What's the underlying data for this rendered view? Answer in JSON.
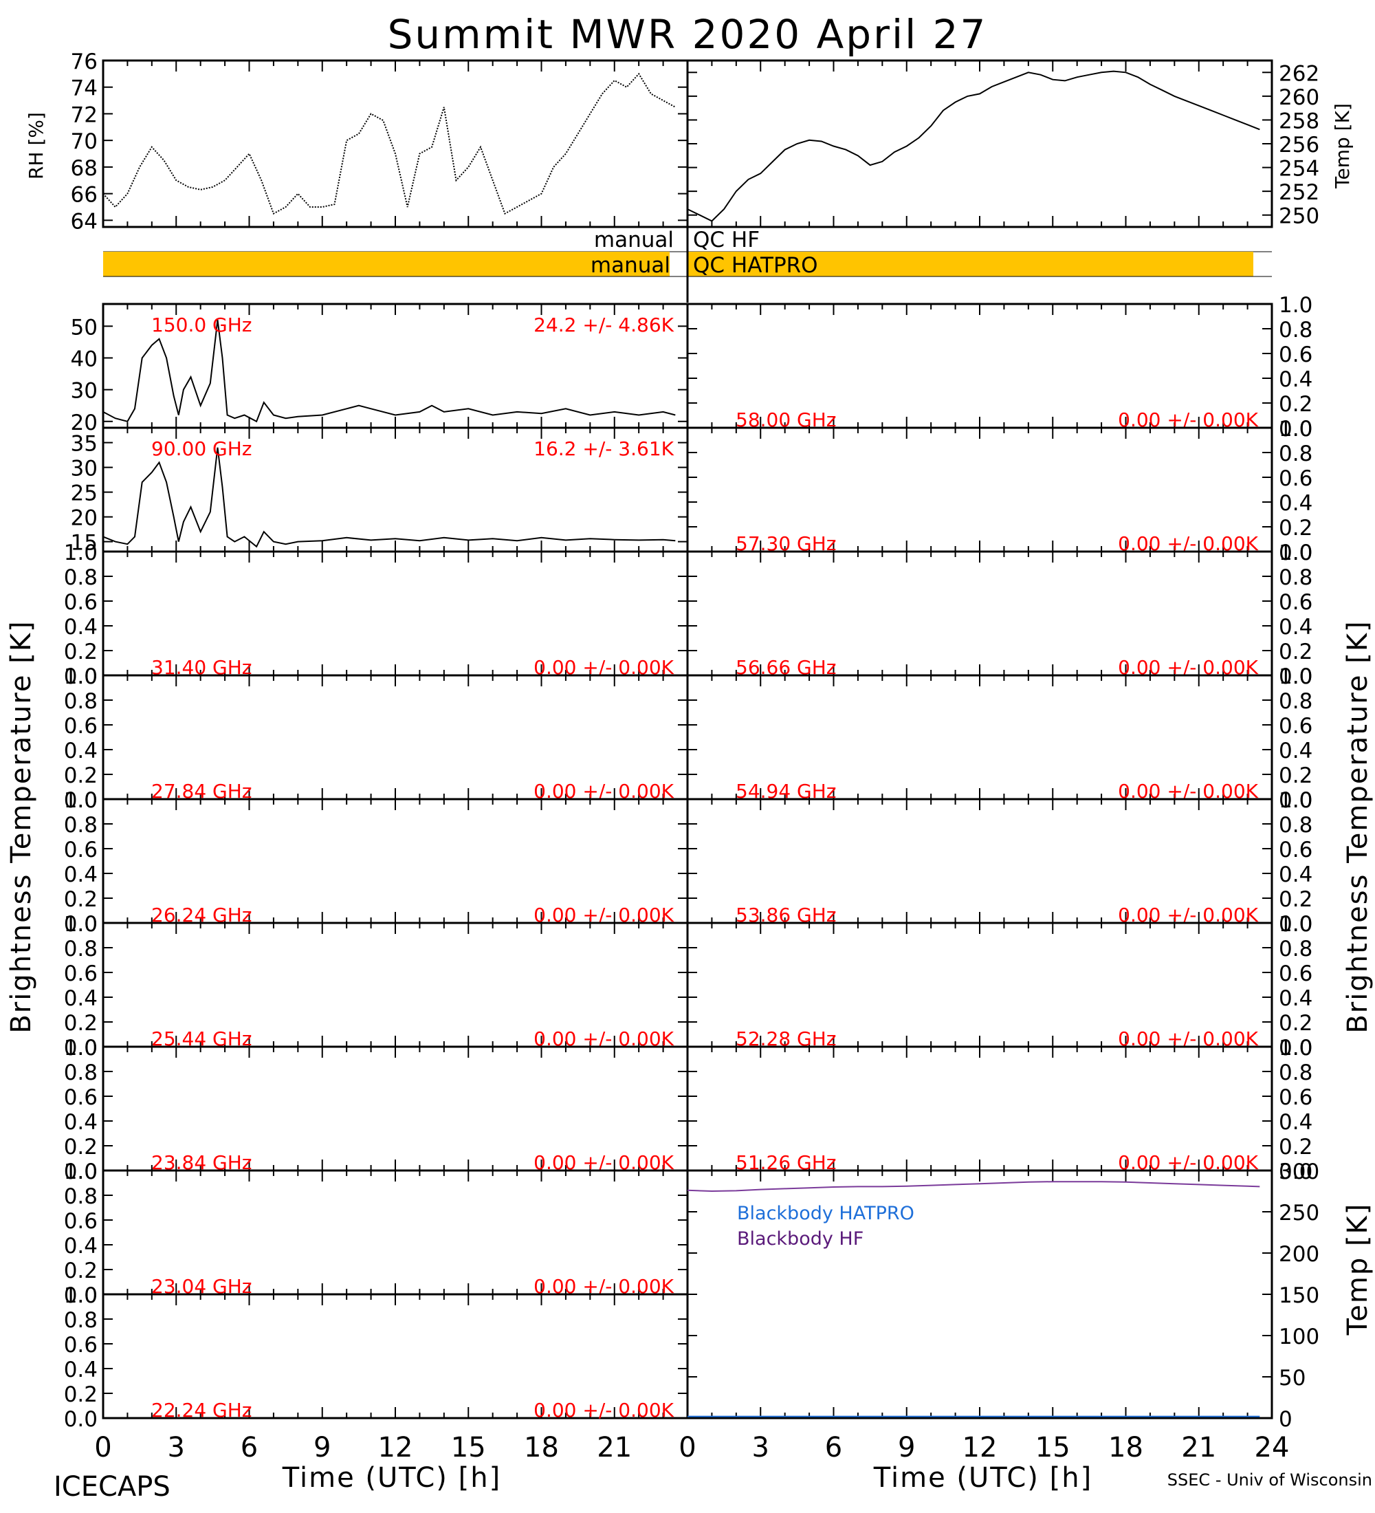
{
  "title": "Summit MWR 2020 April 27",
  "footer": {
    "left": "ICECAPS",
    "right": "SSEC - Univ of Wisconsin"
  },
  "colors": {
    "axis": "#000000",
    "label_red": "#ff0000",
    "qc_bar": "#ffc400",
    "bb_hatpro": "#1e6fd9",
    "bb_hf": "#5a1a7a",
    "bb_line": "#7a3a9a"
  },
  "axes": {
    "xlabel": "Time (UTC) [h]",
    "xticks": [
      "0",
      "3",
      "6",
      "9",
      "12",
      "15",
      "18",
      "21"
    ],
    "xticks_right": [
      "0",
      "3",
      "6",
      "9",
      "12",
      "15",
      "18",
      "21",
      "24"
    ],
    "ylabel_rh": "RH [%]",
    "ylabel_temp": "Temp [K]",
    "ylabel_tb": "Brightness Temperature [K]",
    "ylabel_bb": "Temp [K]"
  },
  "qc": {
    "hf_left": "manual",
    "hf_right": "QC HF",
    "hatpro_left": "manual",
    "hatpro_right": "QC HATPRO"
  },
  "legend": {
    "bb_hatpro": "Blackbody HATPRO",
    "bb_hf": "Blackbody HF"
  },
  "chart_data": [
    {
      "id": "rh",
      "type": "line",
      "ylabel": "RH [%]",
      "xlim": [
        0,
        24
      ],
      "ylim": [
        63.5,
        76
      ],
      "yticks": [
        "64",
        "66",
        "68",
        "70",
        "72",
        "74",
        "76"
      ],
      "x": [
        0,
        0.5,
        1,
        1.5,
        2,
        2.5,
        3,
        3.5,
        4,
        4.5,
        5,
        5.5,
        6,
        6.5,
        7,
        7.5,
        8,
        8.5,
        9,
        9.5,
        10,
        10.5,
        11,
        11.5,
        12,
        12.5,
        13,
        13.5,
        14,
        14.5,
        15,
        15.5,
        16,
        16.5,
        17,
        17.5,
        18,
        18.5,
        19,
        19.5,
        20,
        20.5,
        21,
        21.5,
        22,
        22.5,
        23,
        23.5
      ],
      "y": [
        66,
        65,
        66,
        68,
        69.5,
        68.5,
        67,
        66.5,
        66.3,
        66.5,
        67,
        68,
        69,
        67,
        64.5,
        65,
        66,
        65,
        65,
        65.2,
        70,
        70.5,
        72,
        71.5,
        69,
        65,
        69,
        69.5,
        72.5,
        67,
        68,
        69.5,
        67,
        64.5,
        65,
        65.5,
        66,
        68,
        69,
        70.5,
        72,
        73.5,
        74.5,
        74,
        75,
        73.5,
        73,
        72.5
      ]
    },
    {
      "id": "temp",
      "type": "line",
      "ylabel": "Temp [K]",
      "xlim": [
        0,
        24
      ],
      "ylim": [
        249,
        263
      ],
      "yticks": [
        "250",
        "252",
        "254",
        "256",
        "258",
        "260",
        "262"
      ],
      "x": [
        0,
        0.5,
        1,
        1.5,
        2,
        2.5,
        3,
        3.5,
        4,
        4.5,
        5,
        5.5,
        6,
        6.5,
        7,
        7.5,
        8,
        8.5,
        9,
        9.5,
        10,
        10.5,
        11,
        11.5,
        12,
        12.5,
        13,
        13.5,
        14,
        14.5,
        15,
        15.5,
        16,
        16.5,
        17,
        17.5,
        18,
        18.5,
        19,
        19.5,
        20,
        20.5,
        21,
        21.5,
        22,
        22.5,
        23,
        23.5
      ],
      "y": [
        250.5,
        250,
        249.5,
        250.5,
        252,
        253,
        253.5,
        254.5,
        255.5,
        256,
        256.3,
        256.2,
        255.8,
        255.5,
        255,
        254.2,
        254.5,
        255.3,
        255.8,
        256.5,
        257.5,
        258.8,
        259.5,
        260,
        260.2,
        260.8,
        261.2,
        261.6,
        262,
        261.8,
        261.4,
        261.3,
        261.6,
        261.8,
        262,
        262.1,
        262,
        261.6,
        261,
        260.5,
        260,
        259.6,
        259.2,
        258.8,
        258.4,
        258,
        257.6,
        257.2
      ]
    },
    {
      "id": "tb150",
      "type": "line",
      "freq": "150.0 GHz",
      "stats": "24.2 +/- 4.86K",
      "xlim": [
        0,
        24
      ],
      "ylim": [
        18,
        57
      ],
      "yticks": [
        "20",
        "30",
        "40",
        "50"
      ],
      "x": [
        0,
        0.5,
        1,
        1.3,
        1.6,
        2,
        2.3,
        2.6,
        2.9,
        3.1,
        3.3,
        3.6,
        4,
        4.4,
        4.7,
        4.9,
        5.1,
        5.4,
        5.8,
        6.3,
        6.6,
        7,
        7.5,
        8,
        9,
        10,
        10.5,
        11,
        12,
        13,
        13.5,
        14,
        15,
        16,
        17,
        18,
        19,
        20,
        21,
        22,
        23,
        23.5
      ],
      "y": [
        23,
        21,
        20,
        24,
        40,
        44,
        46,
        40,
        28,
        22,
        30,
        34,
        25,
        32,
        52,
        40,
        22,
        21,
        22,
        20,
        26,
        22,
        21,
        21.5,
        22,
        24,
        25,
        24,
        22,
        23,
        25,
        23,
        24,
        22,
        23,
        22.5,
        24,
        22,
        23,
        22,
        23,
        22
      ]
    },
    {
      "id": "tb90",
      "type": "line",
      "freq": "90.00 GHz",
      "stats": "16.2 +/- 3.61K",
      "xlim": [
        0,
        24
      ],
      "ylim": [
        13,
        38
      ],
      "yticks": [
        "15",
        "20",
        "25",
        "30",
        "35"
      ],
      "x": [
        0,
        0.5,
        1,
        1.3,
        1.6,
        2,
        2.3,
        2.6,
        2.9,
        3.1,
        3.3,
        3.6,
        4,
        4.4,
        4.7,
        4.9,
        5.1,
        5.4,
        5.8,
        6.3,
        6.6,
        7,
        7.5,
        8,
        9,
        10,
        11,
        12,
        13,
        14,
        15,
        16,
        17,
        18,
        19,
        20,
        21,
        22,
        23,
        23.5
      ],
      "y": [
        16,
        15,
        14.5,
        16,
        27,
        29,
        31,
        27,
        20,
        15,
        19,
        22,
        17,
        21,
        34,
        26,
        16,
        15,
        16,
        14,
        17,
        15,
        14.5,
        15,
        15.2,
        15.8,
        15.3,
        15.6,
        15.2,
        15.8,
        15.3,
        15.6,
        15.2,
        15.8,
        15.3,
        15.6,
        15.4,
        15.3,
        15.4,
        15.2
      ]
    },
    {
      "id": "tb5800",
      "type": "line",
      "freq": "58.00 GHz",
      "stats": "0.00 +/- 0.00K",
      "xlim": [
        0,
        24
      ],
      "ylim": [
        0,
        1
      ],
      "yticks": [
        "0.0",
        "0.2",
        "0.4",
        "0.6",
        "0.8",
        "1.0"
      ],
      "x": [],
      "y": []
    },
    {
      "id": "tb5730",
      "type": "line",
      "freq": "57.30 GHz",
      "stats": "0.00 +/- 0.00K",
      "xlim": [
        0,
        24
      ],
      "ylim": [
        0,
        1
      ],
      "yticks": [
        "0.0",
        "0.2",
        "0.4",
        "0.6",
        "0.8",
        "1.0"
      ],
      "x": [],
      "y": []
    },
    {
      "id": "tb3140",
      "type": "line",
      "freq": "31.40 GHz",
      "stats": "0.00 +/- 0.00K",
      "xlim": [
        0,
        24
      ],
      "ylim": [
        0,
        1
      ],
      "yticks": [
        "0.0",
        "0.2",
        "0.4",
        "0.6",
        "0.8",
        "1.0"
      ],
      "x": [],
      "y": []
    },
    {
      "id": "tb5666",
      "type": "line",
      "freq": "56.66 GHz",
      "stats": "0.00 +/- 0.00K",
      "xlim": [
        0,
        24
      ],
      "ylim": [
        0,
        1
      ],
      "yticks": [
        "0.0",
        "0.2",
        "0.4",
        "0.6",
        "0.8",
        "1.0"
      ],
      "x": [],
      "y": []
    },
    {
      "id": "tb2784",
      "type": "line",
      "freq": "27.84 GHz",
      "stats": "0.00 +/- 0.00K",
      "xlim": [
        0,
        24
      ],
      "ylim": [
        0,
        1
      ],
      "yticks": [
        "0.0",
        "0.2",
        "0.4",
        "0.6",
        "0.8",
        "1.0"
      ],
      "x": [],
      "y": []
    },
    {
      "id": "tb5494",
      "type": "line",
      "freq": "54.94 GHz",
      "stats": "0.00 +/- 0.00K",
      "xlim": [
        0,
        24
      ],
      "ylim": [
        0,
        1
      ],
      "yticks": [
        "0.0",
        "0.2",
        "0.4",
        "0.6",
        "0.8",
        "1.0"
      ],
      "x": [],
      "y": []
    },
    {
      "id": "tb2624",
      "type": "line",
      "freq": "26.24 GHz",
      "stats": "0.00 +/- 0.00K",
      "xlim": [
        0,
        24
      ],
      "ylim": [
        0,
        1
      ],
      "yticks": [
        "0.0",
        "0.2",
        "0.4",
        "0.6",
        "0.8",
        "1.0"
      ],
      "x": [],
      "y": []
    },
    {
      "id": "tb5386",
      "type": "line",
      "freq": "53.86 GHz",
      "stats": "0.00 +/- 0.00K",
      "xlim": [
        0,
        24
      ],
      "ylim": [
        0,
        1
      ],
      "yticks": [
        "0.0",
        "0.2",
        "0.4",
        "0.6",
        "0.8",
        "1.0"
      ],
      "x": [],
      "y": []
    },
    {
      "id": "tb2544",
      "type": "line",
      "freq": "25.44 GHz",
      "stats": "0.00 +/- 0.00K",
      "xlim": [
        0,
        24
      ],
      "ylim": [
        0,
        1
      ],
      "yticks": [
        "0.0",
        "0.2",
        "0.4",
        "0.6",
        "0.8",
        "1.0"
      ],
      "x": [],
      "y": []
    },
    {
      "id": "tb5228",
      "type": "line",
      "freq": "52.28 GHz",
      "stats": "0.00 +/- 0.00K",
      "xlim": [
        0,
        24
      ],
      "ylim": [
        0,
        1
      ],
      "yticks": [
        "0.0",
        "0.2",
        "0.4",
        "0.6",
        "0.8",
        "1.0"
      ],
      "x": [],
      "y": []
    },
    {
      "id": "tb2384",
      "type": "line",
      "freq": "23.84 GHz",
      "stats": "0.00 +/- 0.00K",
      "xlim": [
        0,
        24
      ],
      "ylim": [
        0,
        1
      ],
      "yticks": [
        "0.0",
        "0.2",
        "0.4",
        "0.6",
        "0.8",
        "1.0"
      ],
      "x": [],
      "y": []
    },
    {
      "id": "tb5126",
      "type": "line",
      "freq": "51.26 GHz",
      "stats": "0.00 +/- 0.00K",
      "xlim": [
        0,
        24
      ],
      "ylim": [
        0,
        1
      ],
      "yticks": [
        "0.0",
        "0.2",
        "0.4",
        "0.6",
        "0.8",
        "1.0"
      ],
      "x": [],
      "y": []
    },
    {
      "id": "tb2304",
      "type": "line",
      "freq": "23.04 GHz",
      "stats": "0.00 +/- 0.00K",
      "xlim": [
        0,
        24
      ],
      "ylim": [
        0,
        1
      ],
      "yticks": [
        "0.0",
        "0.2",
        "0.4",
        "0.6",
        "0.8",
        "1.0"
      ],
      "x": [],
      "y": []
    },
    {
      "id": "tb2224",
      "type": "line",
      "freq": "22.24 GHz",
      "stats": "0.00 +/- 0.00K",
      "xlim": [
        0,
        24
      ],
      "ylim": [
        0,
        1
      ],
      "yticks": [
        "0.0",
        "0.2",
        "0.4",
        "0.6",
        "0.8",
        "1.0"
      ],
      "x": [],
      "y": []
    },
    {
      "id": "blackbody",
      "type": "line",
      "ylabel": "Temp [K]",
      "xlim": [
        0,
        24
      ],
      "ylim": [
        0,
        300
      ],
      "yticks": [
        "0",
        "50",
        "100",
        "150",
        "200",
        "250",
        "300"
      ],
      "series": [
        {
          "name": "Blackbody HATPRO",
          "x": [
            0,
            23.5
          ],
          "y": [
            2,
            2
          ]
        },
        {
          "name": "Blackbody HF",
          "x": [
            0,
            1,
            2,
            3,
            4,
            5,
            6,
            7,
            8,
            9,
            10,
            11,
            12,
            13,
            14,
            15,
            16,
            17,
            18,
            19,
            20,
            21,
            22,
            23,
            23.5
          ],
          "y": [
            276,
            275,
            275.5,
            277,
            278,
            279,
            280,
            280.5,
            280.5,
            281,
            282,
            283,
            284,
            285,
            286,
            286.5,
            286.5,
            286.5,
            286,
            285,
            284,
            283,
            282,
            281,
            280.5
          ]
        }
      ]
    }
  ]
}
